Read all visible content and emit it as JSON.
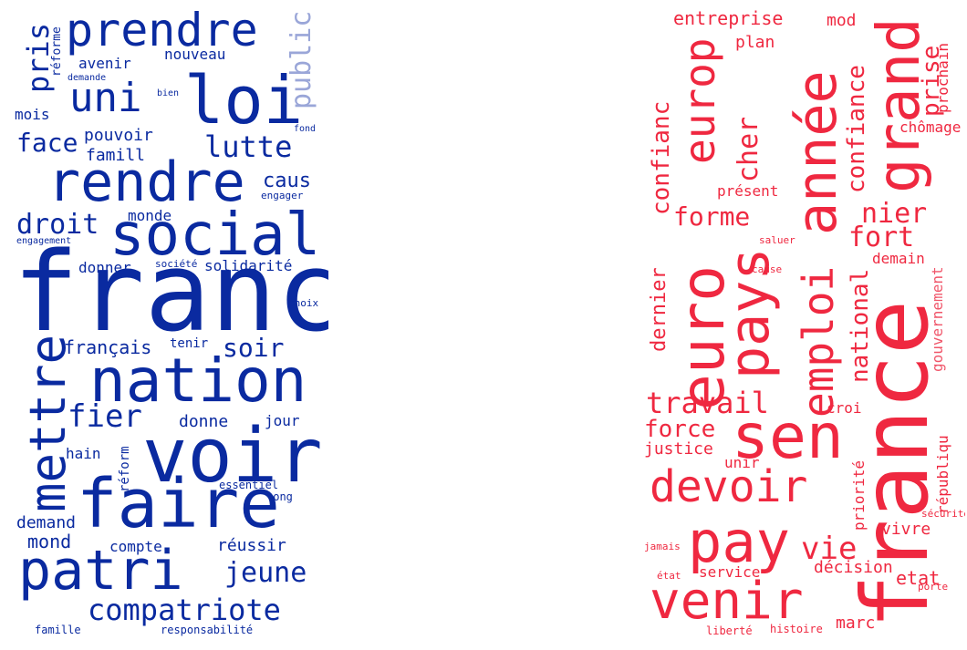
{
  "colors": {
    "left": "#0a2aa0",
    "right": "#ef2840",
    "background": "#ffffff"
  },
  "left_words": {
    "prendre": "prendre",
    "loi": "loi",
    "uni": "uni",
    "public": "public",
    "pris": "pris",
    "reforme": "réforme",
    "avenir": "avenir",
    "nouveau": "nouveau",
    "demande": "demande",
    "bien": "bien",
    "mois": "mois",
    "fond": "fond",
    "face": "face",
    "pouvoir": "pouvoir",
    "famill": "famill",
    "lutte": "lutte",
    "rendre": "rendre",
    "caus": "caus",
    "engager": "engager",
    "droit": "droit",
    "monde": "monde",
    "social": "social",
    "engagement": "engagement",
    "donner": "donner",
    "societe": "société",
    "solidarite": "solidarité",
    "franc": "franc",
    "choix": "choix",
    "mettre": "mettre",
    "francais": "français",
    "tenir": "tenir",
    "soir": "soir",
    "nation": "nation",
    "fier": "fier",
    "donne": "donne",
    "jour": "jour",
    "voir": "voir",
    "hain": "hain",
    "reform": "réform",
    "essentiel": "essentiel",
    "long": "long",
    "faire": "faire",
    "demand": "demand",
    "mond": "mond",
    "compte": "compte",
    "reussir": "réussir",
    "patri": "patri",
    "jeune": "jeune",
    "compatriote": "compatriote",
    "famille": "famille",
    "responsabilite": "responsabilité"
  },
  "right_words": {
    "entreprise": "entreprise",
    "mod": "mod",
    "plan": "plan",
    "europ": "europ",
    "annee": "année",
    "grand": "grand",
    "confiance": "confiance",
    "prise": "prise",
    "prochain": "prochain",
    "chomage": "chômage",
    "confianc": "confianc",
    "cher": "cher",
    "present": "présent",
    "forme": "forme",
    "nier": "nier",
    "saluer": "saluer",
    "fort": "fort",
    "demain": "demain",
    "cause": "cause",
    "dernier": "dernier",
    "euro": "euro",
    "pays": "pays",
    "emploi": "emploi",
    "national": "national",
    "gouvernement": "gouvernement",
    "france": "france",
    "travail": "travail",
    "croi": "croi",
    "force": "force",
    "justice": "justice",
    "sen": "sen",
    "republiqu": "républiqu",
    "unir": "unir",
    "devoir": "devoir",
    "priorite": "priorité",
    "vie": "vie",
    "securite": "sécurité",
    "vivre": "vivre",
    "jamais": "jamais",
    "pay": "pay",
    "decision": "décision",
    "service": "service",
    "etat_lower": "état",
    "etat": "etat",
    "porte": "porte",
    "venir": "venir",
    "marc": "marc",
    "liberte": "liberté",
    "histoire": "histoire"
  }
}
